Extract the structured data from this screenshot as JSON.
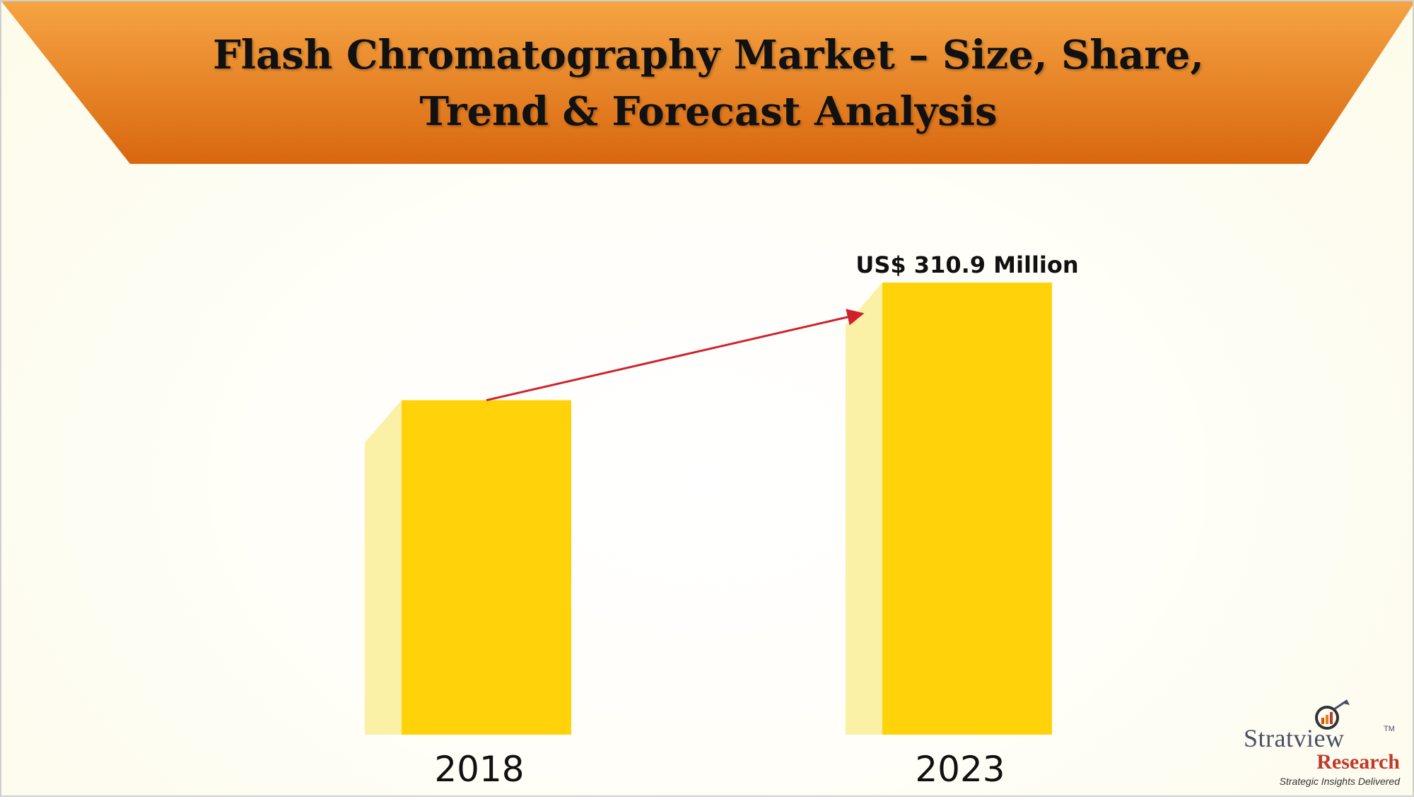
{
  "title_lines": [
    "Flash Chromatography Market – Size, Share,",
    "Trend & Forecast Analysis"
  ],
  "colors": {
    "banner_top": "#f5a443",
    "banner_bottom": "#d9670f",
    "bar_front": "#ffd20a",
    "bar_side": "#faf1a6",
    "arrow": "#d0202c",
    "brand_name": "#4a4f66",
    "brand_sub": "#c0392b"
  },
  "chart_data": {
    "type": "bar",
    "title": "Flash Chromatography Market – Size, Share, Trend & Forecast Analysis",
    "categories": [
      "2018",
      "2023"
    ],
    "series": [
      {
        "values": [
          230,
          310.9
        ]
      }
    ],
    "data_labels": [
      "",
      "US$ 310.9 Million"
    ],
    "ylim": [
      0,
      310.9
    ],
    "grid": false,
    "axes_visible": false,
    "annotation": "growth arrow from 2018 bar to 2023 bar"
  },
  "logo": {
    "name": "Stratview",
    "tm": "TM",
    "sub": "Research",
    "tagline": "Strategic Insights Delivered"
  }
}
